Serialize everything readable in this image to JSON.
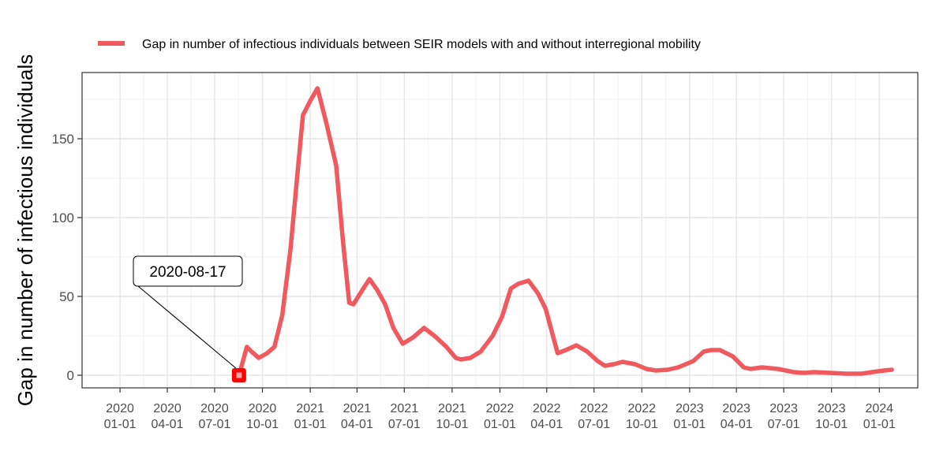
{
  "chart_data": {
    "type": "line",
    "legend": {
      "label": "Gap in number of infectious individuals between SEIR models with and without interregional mobility",
      "position": "top"
    },
    "ylabel": "Gap in number of infectious individuals",
    "xlabel": "",
    "ylim": [
      -8,
      192
    ],
    "xlim": [
      "2019-10-20",
      "2024-03-15"
    ],
    "yticks": [
      0,
      50,
      100,
      150
    ],
    "xticks": [
      {
        "date": "2020-01-01",
        "line1": "2020",
        "line2": "01-01"
      },
      {
        "date": "2020-04-01",
        "line1": "2020",
        "line2": "04-01"
      },
      {
        "date": "2020-07-01",
        "line1": "2020",
        "line2": "07-01"
      },
      {
        "date": "2020-10-01",
        "line1": "2020",
        "line2": "10-01"
      },
      {
        "date": "2021-01-01",
        "line1": "2021",
        "line2": "01-01"
      },
      {
        "date": "2021-04-01",
        "line1": "2021",
        "line2": "04-01"
      },
      {
        "date": "2021-07-01",
        "line1": "2021",
        "line2": "07-01"
      },
      {
        "date": "2021-10-01",
        "line1": "2021",
        "line2": "10-01"
      },
      {
        "date": "2022-01-01",
        "line1": "2022",
        "line2": "01-01"
      },
      {
        "date": "2022-04-01",
        "line1": "2022",
        "line2": "04-01"
      },
      {
        "date": "2022-07-01",
        "line1": "2022",
        "line2": "07-01"
      },
      {
        "date": "2022-10-01",
        "line1": "2022",
        "line2": "10-01"
      },
      {
        "date": "2023-01-01",
        "line1": "2023",
        "line2": "01-01"
      },
      {
        "date": "2023-04-01",
        "line1": "2023",
        "line2": "04-01"
      },
      {
        "date": "2023-07-01",
        "line1": "2023",
        "line2": "07-01"
      },
      {
        "date": "2023-10-01",
        "line1": "2023",
        "line2": "10-01"
      },
      {
        "date": "2024-01-01",
        "line1": "2024",
        "line2": "01-01"
      }
    ],
    "grid": true,
    "line_color": "#f05a5e",
    "marker_color": "#ff0000",
    "series": [
      {
        "name": "Gap in number of infectious individuals between SEIR models with and without interregional mobility",
        "points": [
          [
            "2020-08-17",
            0
          ],
          [
            "2020-09-01",
            18
          ],
          [
            "2020-09-10",
            15
          ],
          [
            "2020-09-24",
            11
          ],
          [
            "2020-10-10",
            14
          ],
          [
            "2020-10-24",
            18
          ],
          [
            "2020-11-08",
            38
          ],
          [
            "2020-11-24",
            80
          ],
          [
            "2020-12-08",
            130
          ],
          [
            "2020-12-18",
            165
          ],
          [
            "2021-01-01",
            174
          ],
          [
            "2021-01-15",
            182
          ],
          [
            "2021-02-01",
            160
          ],
          [
            "2021-02-20",
            133
          ],
          [
            "2021-03-05",
            85
          ],
          [
            "2021-03-17",
            46
          ],
          [
            "2021-03-25",
            45
          ],
          [
            "2021-04-15",
            56
          ],
          [
            "2021-04-25",
            61
          ],
          [
            "2021-05-10",
            54
          ],
          [
            "2021-05-25",
            45
          ],
          [
            "2021-06-10",
            30
          ],
          [
            "2021-06-28",
            20
          ],
          [
            "2021-07-18",
            24
          ],
          [
            "2021-08-08",
            30
          ],
          [
            "2021-08-28",
            25
          ],
          [
            "2021-09-20",
            18
          ],
          [
            "2021-10-08",
            11
          ],
          [
            "2021-10-18",
            10
          ],
          [
            "2021-11-05",
            11
          ],
          [
            "2021-11-25",
            15
          ],
          [
            "2021-12-18",
            25
          ],
          [
            "2022-01-05",
            37
          ],
          [
            "2022-01-22",
            55
          ],
          [
            "2022-02-05",
            58
          ],
          [
            "2022-02-25",
            60
          ],
          [
            "2022-03-15",
            52
          ],
          [
            "2022-03-30",
            42
          ],
          [
            "2022-04-22",
            14
          ],
          [
            "2022-05-08",
            16
          ],
          [
            "2022-05-28",
            19
          ],
          [
            "2022-06-18",
            15
          ],
          [
            "2022-07-08",
            9
          ],
          [
            "2022-07-22",
            6
          ],
          [
            "2022-08-08",
            7
          ],
          [
            "2022-08-25",
            8.5
          ],
          [
            "2022-09-18",
            7
          ],
          [
            "2022-10-10",
            4
          ],
          [
            "2022-10-28",
            3
          ],
          [
            "2022-11-20",
            3.5
          ],
          [
            "2022-12-10",
            5
          ],
          [
            "2023-01-08",
            9
          ],
          [
            "2023-01-28",
            15
          ],
          [
            "2023-02-12",
            16
          ],
          [
            "2023-02-28",
            16
          ],
          [
            "2023-03-25",
            12
          ],
          [
            "2023-04-15",
            5
          ],
          [
            "2023-04-28",
            4
          ],
          [
            "2023-05-20",
            5
          ],
          [
            "2023-06-20",
            4
          ],
          [
            "2023-07-20",
            2
          ],
          [
            "2023-08-10",
            1.5
          ],
          [
            "2023-08-28",
            2
          ],
          [
            "2023-09-28",
            1.5
          ],
          [
            "2023-10-28",
            1
          ],
          [
            "2023-11-28",
            1
          ],
          [
            "2023-12-18",
            2
          ],
          [
            "2024-01-10",
            3
          ],
          [
            "2024-01-25",
            3.5
          ]
        ]
      }
    ],
    "annotation": {
      "label": "2020-08-17",
      "date": "2020-08-17",
      "value": 0
    }
  }
}
